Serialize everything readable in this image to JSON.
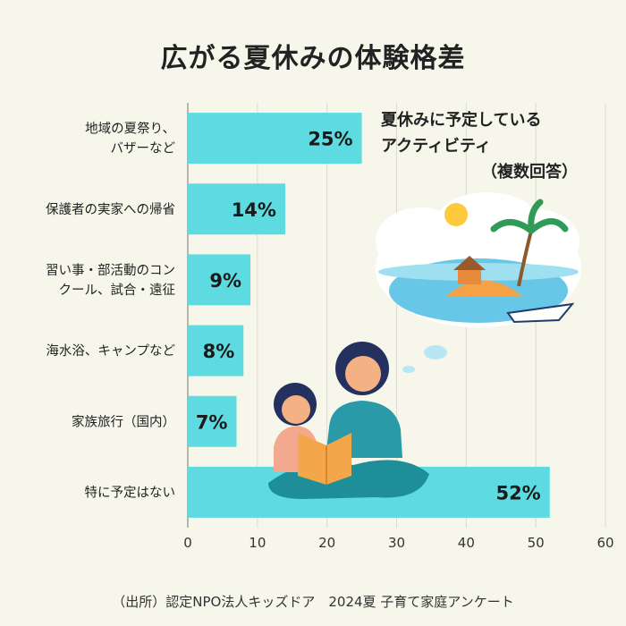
{
  "chart_data": {
    "type": "bar",
    "orientation": "horizontal",
    "title": "広がる夏休みの体験格差",
    "categories": [
      [
        "地域の夏祭り、",
        "バザーなど"
      ],
      [
        "保護者の実家への帰省"
      ],
      [
        "習い事・部活動のコン",
        "クール、試合・遠征"
      ],
      [
        "海水浴、キャンプなど"
      ],
      [
        "家族旅行（国内）"
      ],
      [
        "特に予定はない"
      ]
    ],
    "values": [
      25,
      14,
      9,
      8,
      7,
      52
    ],
    "data_labels": [
      "25%",
      "14%",
      "9%",
      "8%",
      "7%",
      "52%"
    ],
    "xlim": [
      0,
      60
    ],
    "x_ticks": [
      "0",
      "10",
      "20",
      "30",
      "40",
      "50",
      "60"
    ],
    "grid": true,
    "bar_color": "#5ddbe0",
    "annotation": [
      "夏休みに予定している",
      "アクティビティ",
      "（複数回答）"
    ]
  },
  "source": "（出所）認定NPO法人キッズドア　2024夏 子育て家庭アンケート"
}
